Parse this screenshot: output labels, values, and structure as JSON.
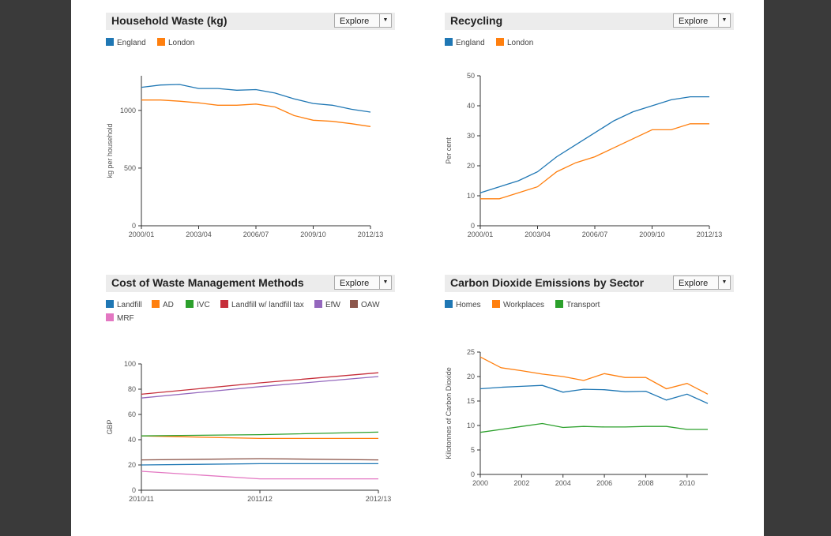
{
  "panels": [
    {
      "title": "Household Waste (kg)",
      "explore_label": "Explore",
      "chart_data": {
        "type": "line",
        "x": [
          "2000/01",
          "2001/02",
          "2002/03",
          "2003/04",
          "2004/05",
          "2005/06",
          "2006/07",
          "2007/08",
          "2008/09",
          "2009/10",
          "2010/11",
          "2011/12",
          "2012/13"
        ],
        "xticks": [
          "2000/01",
          "2003/04",
          "2006/07",
          "2009/10",
          "2012/13"
        ],
        "ylabel": "kg per household",
        "ylim": [
          0,
          1300
        ],
        "yticks": [
          0,
          500,
          1000
        ],
        "series": [
          {
            "name": "England",
            "color": "#1f77b4",
            "values": [
              1200,
              1220,
              1225,
              1190,
              1190,
              1175,
              1180,
              1150,
              1100,
              1060,
              1045,
              1010,
              985
            ]
          },
          {
            "name": "London",
            "color": "#ff7f0e",
            "values": [
              1090,
              1090,
              1080,
              1065,
              1045,
              1045,
              1055,
              1030,
              955,
              915,
              905,
              885,
              860
            ]
          }
        ]
      }
    },
    {
      "title": "Recycling",
      "explore_label": "Explore",
      "chart_data": {
        "type": "line",
        "x": [
          "2000/01",
          "2001/02",
          "2002/03",
          "2003/04",
          "2004/05",
          "2005/06",
          "2006/07",
          "2007/08",
          "2008/09",
          "2009/10",
          "2010/11",
          "2011/12",
          "2012/13"
        ],
        "xticks": [
          "2000/01",
          "2003/04",
          "2006/07",
          "2009/10",
          "2012/13"
        ],
        "ylabel": "Per cent",
        "ylim": [
          0,
          50
        ],
        "yticks": [
          0,
          10,
          20,
          30,
          40,
          50
        ],
        "series": [
          {
            "name": "England",
            "color": "#1f77b4",
            "values": [
              11,
              13,
              15,
              18,
              23,
              27,
              31,
              35,
              38,
              40,
              42,
              43,
              43
            ]
          },
          {
            "name": "London",
            "color": "#ff7f0e",
            "values": [
              9,
              9,
              11,
              13,
              18,
              21,
              23,
              26,
              29,
              32,
              32,
              34,
              34
            ]
          }
        ]
      }
    },
    {
      "title": "Cost of Waste Management Methods",
      "explore_label": "Explore",
      "chart_data": {
        "type": "line",
        "x": [
          "2010/11",
          "2011/12",
          "2012/13"
        ],
        "xticks": [
          "2010/11",
          "2011/12",
          "2012/13"
        ],
        "ylabel": "GBP",
        "ylim": [
          0,
          100
        ],
        "yticks": [
          0,
          20,
          40,
          60,
          80,
          100
        ],
        "series": [
          {
            "name": "Landfill",
            "color": "#1f77b4",
            "values": [
              20,
              21,
              21
            ]
          },
          {
            "name": "AD",
            "color": "#ff7f0e",
            "values": [
              43,
              41,
              41
            ]
          },
          {
            "name": "IVC",
            "color": "#2ca02c",
            "values": [
              43,
              44,
              46
            ]
          },
          {
            "name": "Landfill w/ landfill tax",
            "color": "#c62e3a",
            "values": [
              76,
              85,
              93
            ]
          },
          {
            "name": "EfW",
            "color": "#9467bd",
            "values": [
              73,
              82,
              90
            ]
          },
          {
            "name": "OAW",
            "color": "#8c564b",
            "values": [
              24,
              25,
              24
            ]
          },
          {
            "name": "MRF",
            "color": "#e377c2",
            "values": [
              15,
              9,
              9
            ]
          }
        ]
      }
    },
    {
      "title": "Carbon Dioxide Emissions by Sector",
      "explore_label": "Explore",
      "chart_data": {
        "type": "line",
        "x": [
          2000,
          2001,
          2002,
          2003,
          2004,
          2005,
          2006,
          2007,
          2008,
          2009,
          2010,
          2011
        ],
        "xticks": [
          "2000",
          "2002",
          "2004",
          "2006",
          "2008",
          "2010"
        ],
        "ylabel": "Kilotonnes of Carbon Dioxide",
        "ylim": [
          0,
          25
        ],
        "xlim": [
          2000,
          2011
        ],
        "yticks": [
          0,
          5,
          10,
          15,
          20,
          25
        ],
        "series": [
          {
            "name": "Homes",
            "color": "#1f77b4",
            "values": [
              17.5,
              17.8,
              18.0,
              18.2,
              16.8,
              17.4,
              17.3,
              16.9,
              17.0,
              15.2,
              16.4,
              14.5
            ]
          },
          {
            "name": "Workplaces",
            "color": "#ff7f0e",
            "values": [
              24.0,
              21.8,
              21.2,
              20.5,
              20.0,
              19.2,
              20.6,
              19.8,
              19.8,
              17.5,
              18.6,
              16.4
            ]
          },
          {
            "name": "Transport",
            "color": "#2ca02c",
            "values": [
              8.6,
              9.2,
              9.8,
              10.4,
              9.6,
              9.8,
              9.7,
              9.7,
              9.8,
              9.8,
              9.2,
              9.2
            ]
          }
        ]
      }
    }
  ]
}
